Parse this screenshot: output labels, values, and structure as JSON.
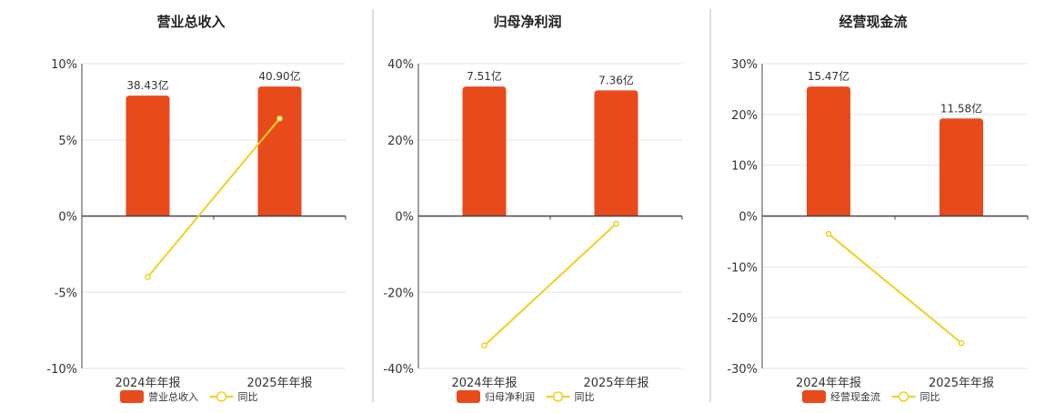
{
  "colors": {
    "bar": "#E84A1C",
    "line": "#F0D020",
    "axis": "#444444",
    "grid": "#E6E6E6",
    "separator": "#BBBBBB",
    "text": "#333333"
  },
  "legend": {
    "line_label": "同比"
  },
  "chart_data": [
    {
      "type": "bar",
      "title": "营业总收入",
      "categories": [
        "2024年年报",
        "2025年年报"
      ],
      "series": [
        {
          "name": "营业总收入",
          "values_label": [
            "38.43亿",
            "40.90亿"
          ],
          "values": [
            38.43,
            40.9
          ]
        },
        {
          "name": "同比",
          "type": "line",
          "values": [
            -4.0,
            6.4
          ]
        }
      ],
      "bar_axis_value": [
        7.9,
        8.5
      ],
      "yticks": [
        "10%",
        "5%",
        "0%",
        "-5%",
        "-10%"
      ],
      "ylim": [
        -10,
        10
      ],
      "grid": true
    },
    {
      "type": "bar",
      "title": "归母净利润",
      "categories": [
        "2024年年报",
        "2025年年报"
      ],
      "series": [
        {
          "name": "归母净利润",
          "values_label": [
            "7.51亿",
            "7.36亿"
          ],
          "values": [
            7.51,
            7.36
          ]
        },
        {
          "name": "同比",
          "type": "line",
          "values": [
            -34.0,
            -2.0
          ]
        }
      ],
      "bar_axis_value": [
        34.0,
        33.0
      ],
      "yticks": [
        "40%",
        "20%",
        "0%",
        "-20%",
        "-40%"
      ],
      "ylim": [
        -40,
        40
      ],
      "grid": true
    },
    {
      "type": "bar",
      "title": "经营现金流",
      "categories": [
        "2024年年报",
        "2025年年报"
      ],
      "series": [
        {
          "name": "经营现金流",
          "values_label": [
            "15.47亿",
            "11.58亿"
          ],
          "values": [
            15.47,
            11.58
          ]
        },
        {
          "name": "同比",
          "type": "line",
          "values": [
            -3.5,
            -25.0
          ]
        }
      ],
      "bar_axis_value": [
        25.5,
        19.2
      ],
      "yticks": [
        "30%",
        "20%",
        "10%",
        "0%",
        "-10%",
        "-20%",
        "-30%"
      ],
      "ylim": [
        -30,
        30
      ],
      "grid": true
    }
  ]
}
